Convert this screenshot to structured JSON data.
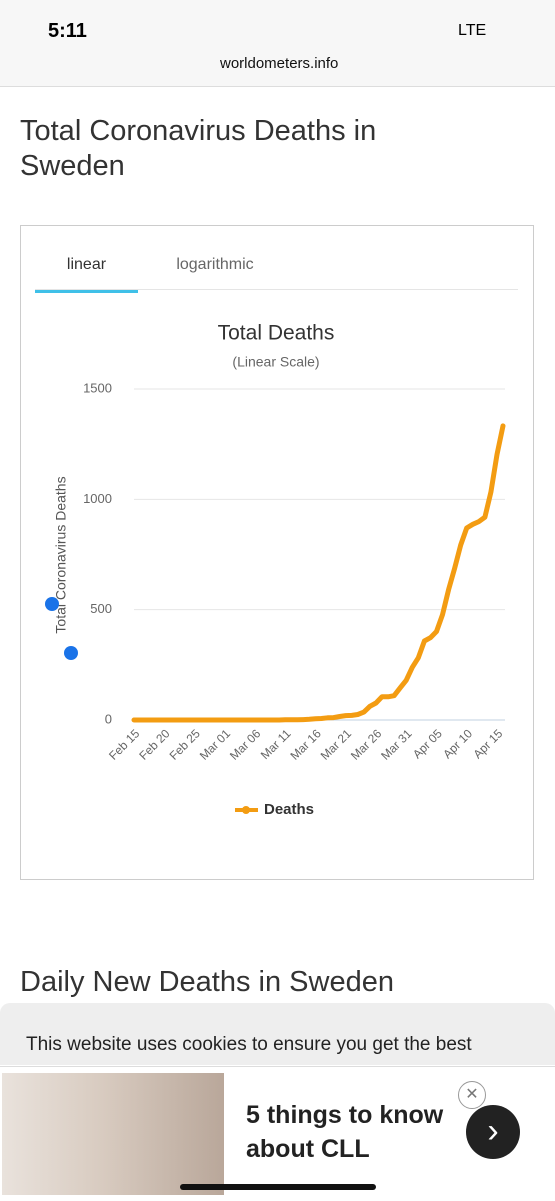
{
  "status_bar": {
    "time": "5:11",
    "network": "LTE"
  },
  "browser": {
    "url": "worldometers.info"
  },
  "page": {
    "heading": "Total Coronavirus Deaths in Sweden",
    "tabs": [
      "linear",
      "logarithmic"
    ],
    "heading_2": "Daily New Deaths in Sweden",
    "cookie_notice": "This website uses cookies to ensure you get the best"
  },
  "ad": {
    "headline": "5 things to know about CLL"
  },
  "chart_data": {
    "type": "line",
    "title": "Total Deaths",
    "subtitle": "(Linear Scale)",
    "y_label": "Total Coronavirus Deaths",
    "categories": [
      "Feb 15",
      null,
      null,
      null,
      null,
      "Feb 20",
      null,
      null,
      null,
      null,
      "Feb 25",
      null,
      null,
      null,
      null,
      "Mar 01",
      null,
      null,
      null,
      null,
      "Mar 06",
      null,
      null,
      null,
      null,
      "Mar 11",
      null,
      null,
      null,
      null,
      "Mar 16",
      null,
      null,
      null,
      null,
      "Mar 21",
      null,
      null,
      null,
      null,
      "Mar 26",
      null,
      null,
      null,
      null,
      "Mar 31",
      null,
      null,
      null,
      null,
      "Apr 05",
      null,
      null,
      null,
      null,
      "Apr 10",
      null,
      null,
      null,
      null,
      "Apr 15",
      null
    ],
    "series": [
      {
        "name": "Deaths",
        "color": "#f39c12",
        "values": [
          0,
          0,
          0,
          0,
          0,
          0,
          0,
          0,
          0,
          0,
          0,
          0,
          0,
          0,
          0,
          0,
          0,
          0,
          0,
          0,
          0,
          0,
          0,
          0,
          0,
          1,
          1,
          1,
          2,
          3,
          6,
          7,
          10,
          11,
          16,
          20,
          21,
          25,
          36,
          62,
          77,
          105,
          105,
          110,
          146,
          180,
          239,
          282,
          358,
          373,
          401,
          477,
          591,
          687,
          793,
          870,
          887,
          899,
          919,
          1033,
          1203,
          1333
        ]
      }
    ],
    "ylim": [
      0,
      1500
    ],
    "yticks": [
      0,
      500,
      1000,
      1500
    ],
    "grid": true
  }
}
